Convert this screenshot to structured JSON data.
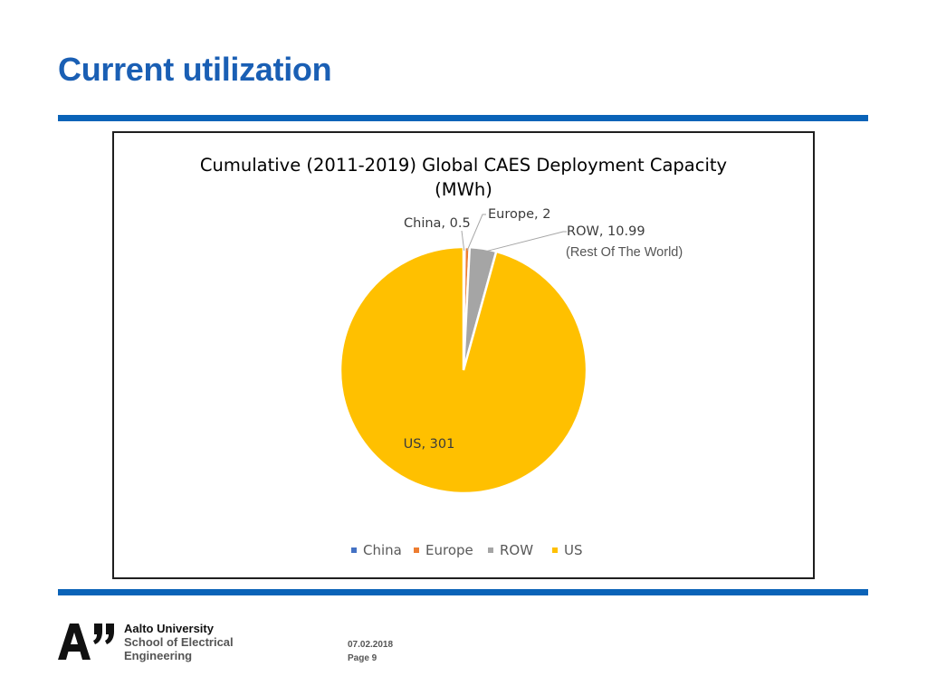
{
  "slide": {
    "title": "Current utilization"
  },
  "colors": {
    "title": "#1a5fb4",
    "rule": "#0a63b8",
    "China": "#4472C4",
    "Europe": "#ED7D31",
    "ROW": "#A5A5A5",
    "US": "#FFC000",
    "text_dark": "#3b3b3b"
  },
  "chart_data": {
    "type": "pie",
    "title_line1": "Cumulative (2011-2019) Global CAES Deployment Capacity",
    "title_line2": "(MWh)",
    "slices": [
      {
        "name": "China",
        "value": 0.5,
        "label": "China, 0.5"
      },
      {
        "name": "Europe",
        "value": 2,
        "label": "Europe, 2"
      },
      {
        "name": "ROW",
        "value": 10.99,
        "label": "ROW, 10.99"
      },
      {
        "name": "US",
        "value": 301,
        "label": "US, 301"
      }
    ],
    "annotation": "(Rest Of The World)",
    "legend": [
      "China",
      "Europe",
      "ROW",
      "US"
    ],
    "legend_position": "bottom"
  },
  "footer": {
    "university": "Aalto University",
    "school_line1": "School of Electrical",
    "school_line2": "Engineering",
    "date": "07.02.2018",
    "page": "Page 9"
  }
}
